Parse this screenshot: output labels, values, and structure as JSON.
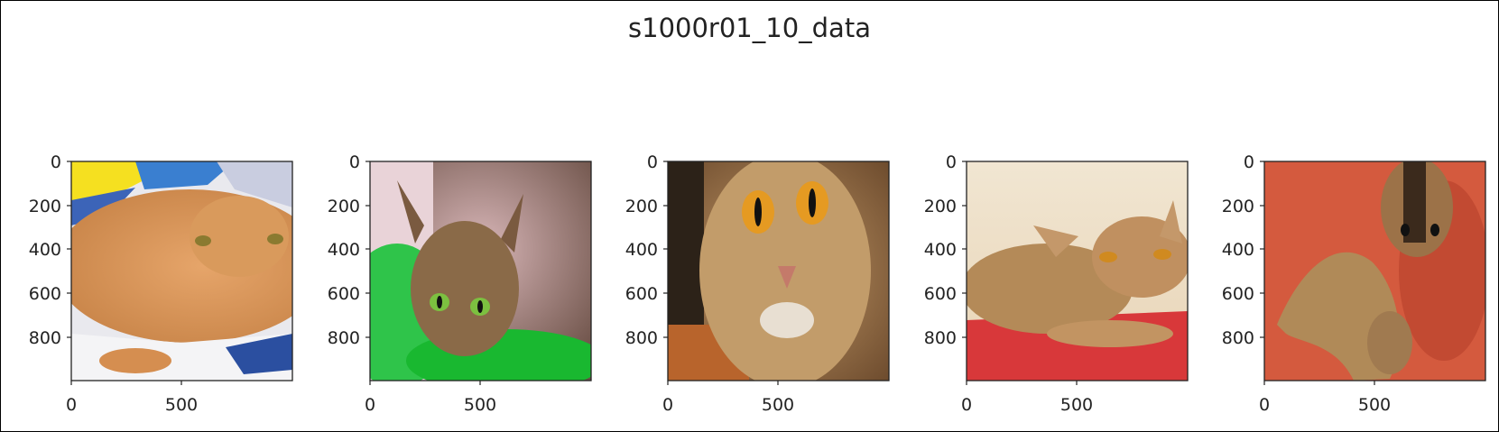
{
  "figure": {
    "title": "s1000r01_10_data"
  },
  "axes": {
    "y_ticks": [
      "0",
      "200",
      "400",
      "600",
      "800"
    ],
    "x_ticks": [
      "0",
      "500"
    ]
  },
  "panels": [
    {
      "name": "cat-image-1",
      "description_icon": "orange-tabby-cat-icon"
    },
    {
      "name": "cat-image-2",
      "description_icon": "abyssinian-cat-green-eyes-icon"
    },
    {
      "name": "cat-image-3",
      "description_icon": "cat-face-closeup-icon"
    },
    {
      "name": "cat-image-4",
      "description_icon": "abyssinian-cat-on-red-pillow-icon"
    },
    {
      "name": "cat-image-5",
      "description_icon": "two-abyssinian-cats-on-red-icon"
    }
  ],
  "colors": {
    "axis": "#222222",
    "background": "#ffffff"
  }
}
